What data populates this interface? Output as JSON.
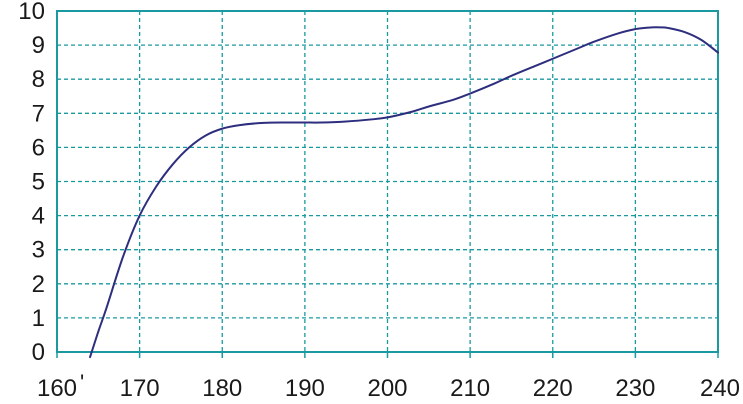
{
  "chart_data": {
    "type": "line",
    "title": "",
    "xlabel": "",
    "ylabel": "",
    "xlim": [
      160,
      240
    ],
    "ylim": [
      0,
      10
    ],
    "x_ticks": [
      160,
      170,
      180,
      190,
      200,
      210,
      220,
      230,
      240
    ],
    "y_ticks": [
      0,
      1,
      2,
      3,
      4,
      5,
      6,
      7,
      8,
      9,
      10
    ],
    "x_tick_labels": [
      "160",
      "170",
      "180",
      "190",
      "200",
      "210",
      "220",
      "230",
      "240"
    ],
    "y_tick_labels": [
      "0",
      "1",
      "2",
      "3",
      "4",
      "5",
      "6",
      "7",
      "8",
      "9",
      "10"
    ],
    "x_annotation": "'",
    "grid": true,
    "legend": "none",
    "colors": {
      "line": "#2e2e7e",
      "grid": "#1a9aa0",
      "axes": "#1a9aa0",
      "text": "#1a1a1a"
    },
    "series": [
      {
        "x": [
          164,
          165,
          166,
          168,
          170,
          172,
          174,
          176,
          178,
          180,
          182,
          185,
          188,
          190,
          192,
          195,
          198,
          200,
          203,
          205,
          208,
          210,
          213,
          215,
          218,
          220,
          223,
          225,
          228,
          230,
          231,
          232,
          233,
          234,
          236,
          238,
          240
        ],
        "y": [
          -0.15,
          0.6,
          1.3,
          2.8,
          4.0,
          4.85,
          5.5,
          6.0,
          6.35,
          6.55,
          6.65,
          6.72,
          6.73,
          6.73,
          6.73,
          6.76,
          6.82,
          6.88,
          7.05,
          7.2,
          7.4,
          7.58,
          7.88,
          8.1,
          8.4,
          8.6,
          8.9,
          9.1,
          9.35,
          9.47,
          9.5,
          9.52,
          9.52,
          9.5,
          9.38,
          9.15,
          8.78
        ]
      }
    ]
  }
}
